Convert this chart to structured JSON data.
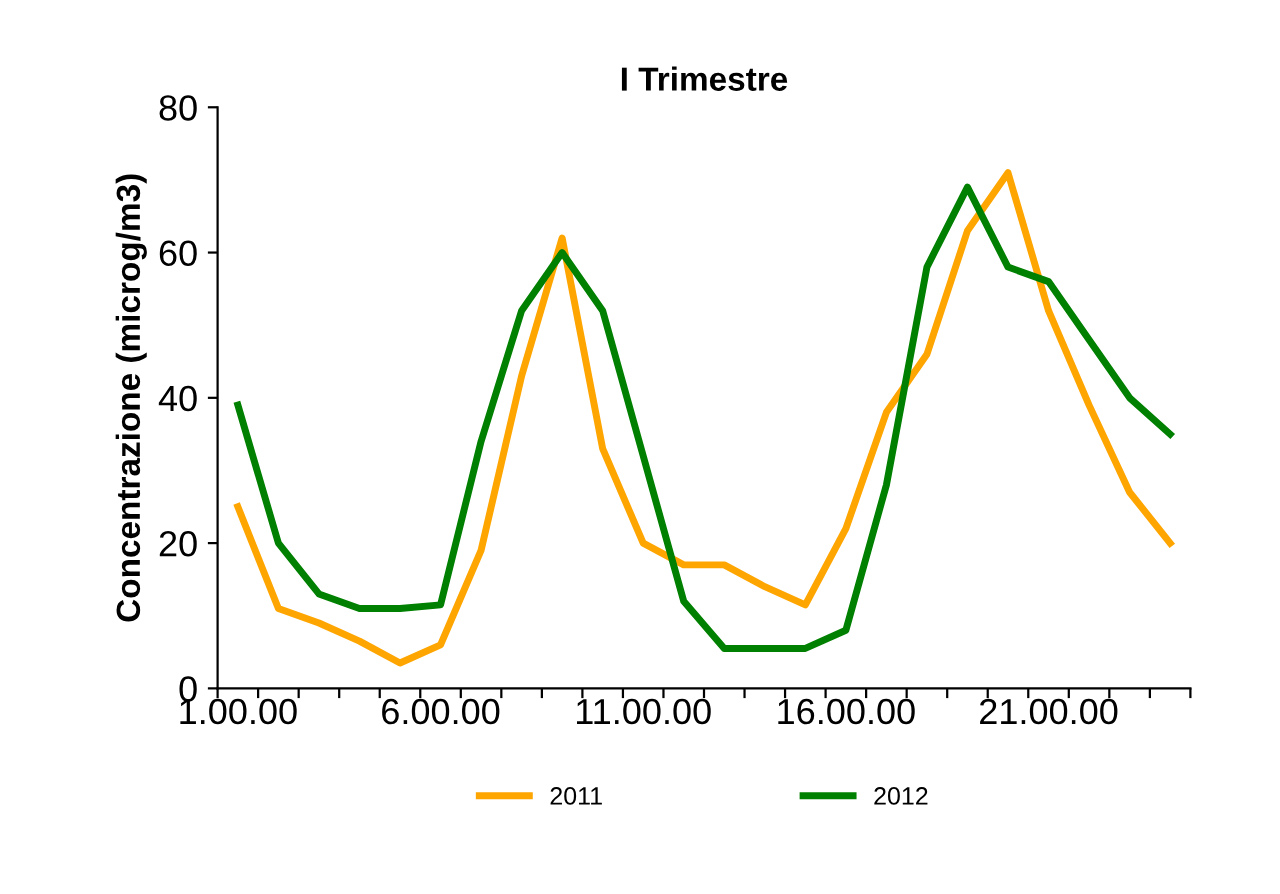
{
  "chart_data": {
    "type": "line",
    "title": "I Trimestre",
    "ylabel": "Concentrazione (microg/m3)",
    "categories": [
      "1.00.00",
      null,
      null,
      null,
      null,
      "6.00.00",
      null,
      null,
      null,
      null,
      "11.00.00",
      null,
      null,
      null,
      null,
      "16.00.00",
      null,
      null,
      null,
      null,
      "21.00.00",
      null,
      null,
      null
    ],
    "series": [
      {
        "name": "2011",
        "color": "#ffa500",
        "values": [
          25,
          11,
          9,
          6.5,
          3.5,
          6,
          19,
          43,
          62,
          33,
          20,
          17,
          17,
          14,
          11.5,
          22,
          38,
          46,
          63,
          71,
          52,
          39,
          27,
          20
        ]
      },
      {
        "name": "2012",
        "color": "#008000",
        "values": [
          39,
          20,
          13,
          11,
          11,
          11.5,
          34,
          52,
          60,
          52,
          32,
          12,
          5.5,
          5.5,
          5.5,
          8,
          28,
          58,
          69,
          58,
          56,
          48,
          40,
          35
        ]
      }
    ],
    "ylim": [
      0,
      80
    ],
    "yticks": [
      0,
      20,
      40,
      60,
      80
    ],
    "grid": false,
    "legend": "bottom",
    "marker": "none",
    "line_style": "solid"
  }
}
